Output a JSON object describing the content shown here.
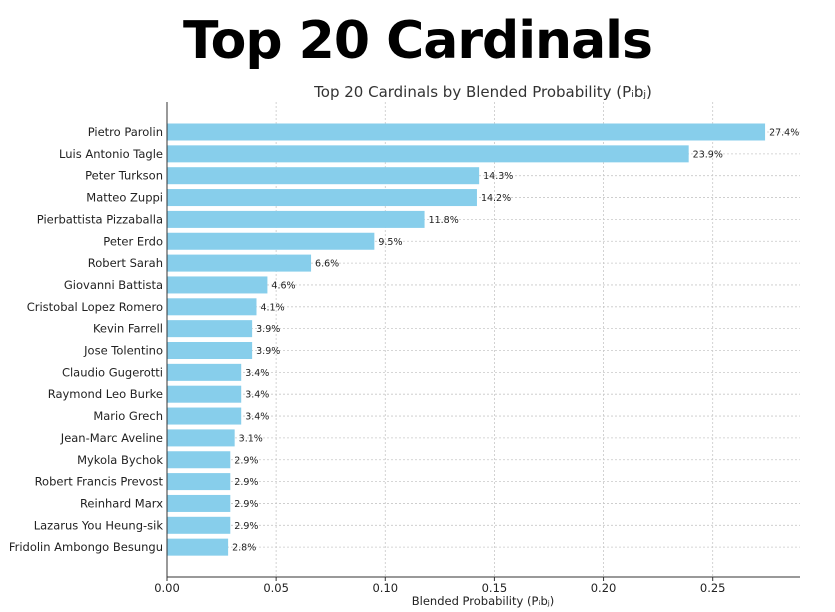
{
  "page_title": "Top 20 Cardinals",
  "chart_data": {
    "type": "bar",
    "orientation": "horizontal",
    "title": "Top 20 Cardinals by Blended Probability (Pᵢbⱼ)",
    "xlabel": "Blended Probability (Pᵢbⱼ)",
    "ylabel": "",
    "xlim": [
      0,
      0.29
    ],
    "xticks": [
      0.0,
      0.05,
      0.1,
      0.15,
      0.2,
      0.25
    ],
    "xtick_labels": [
      "0.00",
      "0.05",
      "0.10",
      "0.15",
      "0.20",
      "0.25"
    ],
    "grid": true,
    "bar_color": "#87CEEB",
    "categories": [
      "Pietro Parolin",
      "Luis Antonio Tagle",
      "Peter Turkson",
      "Matteo Zuppi",
      "Pierbattista Pizzaballa",
      "Peter Erdo",
      "Robert Sarah",
      "Giovanni Battista",
      "Cristobal Lopez Romero",
      "Kevin Farrell",
      "Jose Tolentino",
      "Claudio Gugerotti",
      "Raymond Leo Burke",
      "Mario Grech",
      "Jean-Marc Aveline",
      "Mykola Bychok",
      "Robert Francis Prevost",
      "Reinhard Marx",
      "Lazarus You Heung-sik",
      "Fridolin Ambongo Besungu"
    ],
    "values": [
      0.274,
      0.239,
      0.143,
      0.142,
      0.118,
      0.095,
      0.066,
      0.046,
      0.041,
      0.039,
      0.039,
      0.034,
      0.034,
      0.034,
      0.031,
      0.029,
      0.029,
      0.029,
      0.029,
      0.028
    ],
    "data_labels": [
      "27.4%",
      "23.9%",
      "14.3%",
      "14.2%",
      "11.8%",
      "9.5%",
      "6.6%",
      "4.6%",
      "4.1%",
      "3.9%",
      "3.9%",
      "3.4%",
      "3.4%",
      "3.4%",
      "3.1%",
      "2.9%",
      "2.9%",
      "2.9%",
      "2.9%",
      "2.8%"
    ]
  }
}
